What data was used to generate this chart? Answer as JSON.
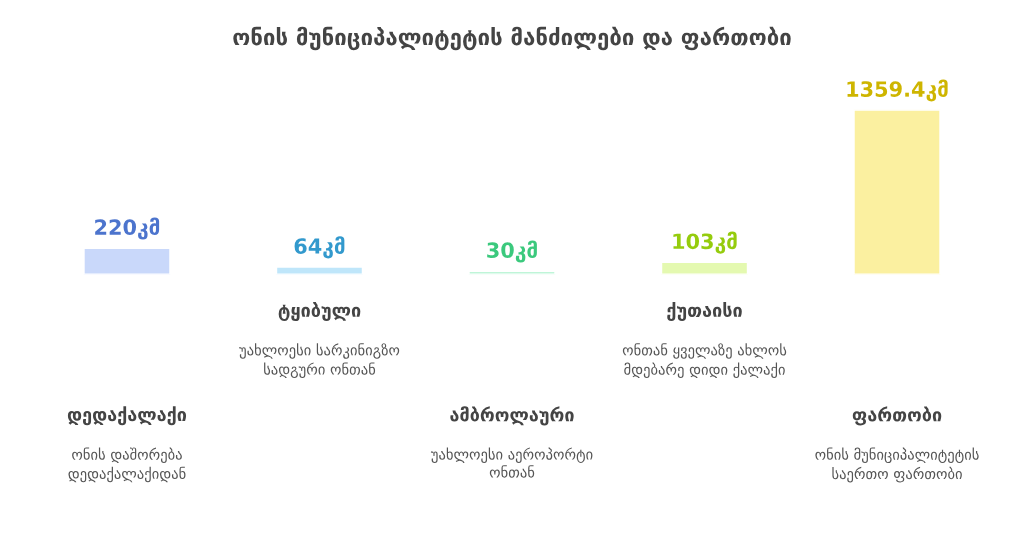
{
  "chart_data": {
    "type": "bar",
    "title": "ონის მუნიციპალიტეტის მანძილები და ფართობი",
    "categories": [
      "დედაქალაქი",
      "ტყიბული",
      "ამბროლაური",
      "ქუთაისი",
      "ფართობი"
    ],
    "values": [
      220,
      64,
      30,
      103,
      1359.4
    ],
    "colors": [
      "#c9d8fa",
      "#bfe6fa",
      "#bff5d8",
      "#e4f9b0",
      "#fbf0a0"
    ],
    "value_labels": [
      "220კმ",
      "64კმ",
      "30კმ",
      "103კმ",
      "1359.4კმ"
    ],
    "annotations": [
      "ონის დაშორება დედაქალაქიდან",
      "უახლოესი სარკინიგზო სადგური ონთან",
      "უახლოესი აეროპორტი ონთან",
      "ონთან ყველაზე ახლოს მდებარე დიდი ქალაქი",
      "ონის მუნიციპალიტეტის საერთო ფართობი"
    ],
    "legend": false
  }
}
